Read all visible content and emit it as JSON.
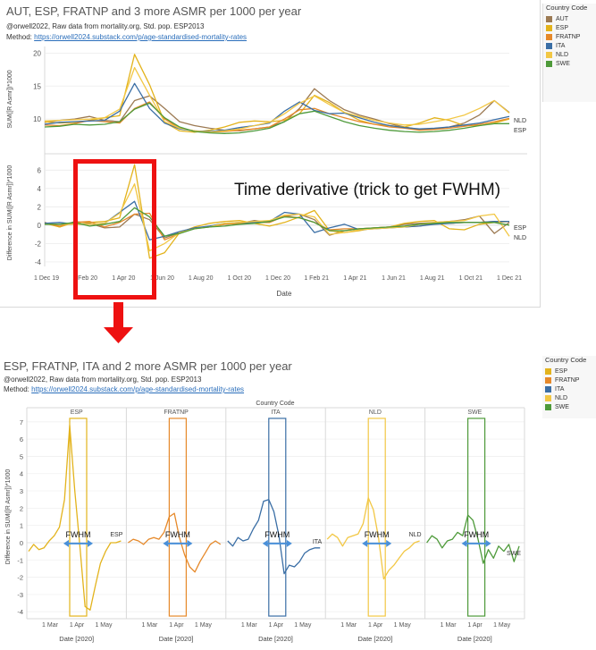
{
  "top": {
    "title": "AUT, ESP, FRATNP and 3 more ASMR per 1000 per year",
    "credit": "@orwell2022,  Raw data from mortality.org, Std. pop. ESP2013",
    "method_label": "Method:",
    "method_link": "https://orwell2024.substack.com/p/age-standardised-mortality-rates",
    "annotation": "Time derivative (trick to get FWHM)",
    "date_axis_label": "Date",
    "end_labels": [
      "NLD",
      "ESP",
      "ESP",
      "NLD"
    ],
    "legend": {
      "title": "Country Code",
      "items": [
        {
          "label": "AUT",
          "color": "#9c7a53"
        },
        {
          "label": "ESP",
          "color": "#e3b31c"
        },
        {
          "label": "FRATNP",
          "color": "#e6892a"
        },
        {
          "label": "ITA",
          "color": "#3a6ea5"
        },
        {
          "label": "NLD",
          "color": "#f2c744"
        },
        {
          "label": "SWE",
          "color": "#4e9a3a"
        }
      ]
    }
  },
  "bottom": {
    "title": "ESP, FRATNP, ITA and 2 more ASMR per 1000 per year",
    "credit": "@orwell2022,  Raw data from mortality.org, Std. pop. ESP2013",
    "method_label": "Method:",
    "method_link": "https://orwell2024.substack.com/p/age-standardised-mortality-rates",
    "facet_header": "Country Code",
    "fwhm_label": "FWHM",
    "date_axis_label": "Date [2020]",
    "legend": {
      "title": "Country Code",
      "items": [
        {
          "label": "ESP",
          "color": "#e3b31c"
        },
        {
          "label": "FRATNP",
          "color": "#e6892a"
        },
        {
          "label": "ITA",
          "color": "#3a6ea5"
        },
        {
          "label": "NLD",
          "color": "#f2c744"
        },
        {
          "label": "SWE",
          "color": "#4e9a3a"
        }
      ]
    }
  },
  "chart_data": [
    {
      "type": "line",
      "ylabel": "SUM([R Asmr])*1000",
      "ylim": [
        5,
        21
      ],
      "yticks": [
        10,
        15,
        20
      ],
      "xticks": [
        "1 Dec 19",
        "1 Feb 20",
        "1 Apr 20",
        "1 Jun 20",
        "1 Aug 20",
        "1 Oct 20",
        "1 Dec 20",
        "1 Feb 21",
        "1 Apr 21",
        "1 Jun 21",
        "1 Aug 21",
        "1 Oct 21",
        "1 Dec 21"
      ],
      "series": [
        {
          "name": "AUT",
          "color": "#9c7a53",
          "values": [
            9.5,
            9.8,
            10.0,
            10.4,
            9.8,
            9.6,
            12.8,
            13.5,
            11.6,
            9.6,
            9.0,
            8.6,
            8.3,
            8.2,
            8.5,
            8.8,
            9.6,
            11.6,
            14.6,
            12.8,
            11.4,
            10.6,
            10.0,
            9.3,
            8.8,
            8.4,
            8.5,
            8.8,
            9.4,
            10.6,
            12.8,
            11.0
          ]
        },
        {
          "name": "ESP",
          "color": "#e3b31c",
          "values": [
            9.6,
            9.4,
            9.5,
            9.8,
            10.2,
            10.5,
            19.8,
            15.2,
            9.5,
            8.2,
            8.0,
            8.3,
            8.8,
            9.5,
            9.7,
            9.6,
            9.8,
            10.8,
            13.6,
            12.5,
            11.0,
            9.8,
            9.2,
            9.0,
            8.8,
            9.4,
            10.2,
            9.8,
            9.0,
            9.0,
            9.4,
            10.0
          ]
        },
        {
          "name": "FRATNP",
          "color": "#e6892a",
          "values": [
            9.1,
            9.0,
            9.3,
            9.8,
            9.6,
            9.4,
            11.6,
            12.6,
            10.0,
            8.6,
            8.2,
            8.0,
            8.1,
            8.3,
            8.5,
            8.8,
            10.0,
            11.4,
            11.6,
            10.8,
            10.2,
            9.6,
            9.2,
            8.8,
            8.6,
            8.3,
            8.4,
            8.6,
            8.9,
            9.2,
            9.6,
            10.1
          ]
        },
        {
          "name": "ITA",
          "color": "#3a6ea5",
          "values": [
            9.2,
            9.5,
            9.6,
            9.7,
            9.8,
            11.2,
            15.4,
            11.6,
            9.4,
            8.5,
            8.2,
            8.1,
            8.3,
            8.7,
            9.0,
            9.4,
            11.2,
            12.6,
            11.3,
            10.8,
            10.9,
            10.2,
            9.5,
            9.0,
            8.7,
            8.5,
            8.6,
            8.8,
            9.1,
            9.4,
            9.9,
            10.4
          ]
        },
        {
          "name": "NLD",
          "color": "#f2c744",
          "values": [
            9.7,
            9.8,
            9.9,
            10.0,
            10.2,
            11.5,
            17.8,
            13.6,
            9.6,
            8.6,
            8.2,
            8.0,
            8.2,
            8.5,
            9.0,
            9.5,
            10.8,
            12.4,
            13.5,
            12.2,
            11.0,
            10.4,
            9.8,
            9.4,
            9.1,
            9.2,
            9.6,
            10.0,
            10.6,
            11.6,
            12.8,
            10.9
          ]
        },
        {
          "name": "SWE",
          "color": "#4e9a3a",
          "values": [
            8.8,
            8.9,
            9.2,
            9.1,
            9.2,
            9.6,
            11.5,
            12.4,
            10.2,
            8.8,
            8.1,
            7.9,
            7.8,
            7.9,
            8.2,
            8.6,
            9.6,
            10.8,
            11.2,
            10.4,
            9.6,
            9.0,
            8.6,
            8.3,
            8.1,
            8.0,
            8.1,
            8.3,
            8.6,
            9.0,
            9.3,
            9.3
          ]
        }
      ]
    },
    {
      "type": "line",
      "ylabel": "Difference in SUM([R Asmr])*1000",
      "ylim": [
        -4.5,
        7.2
      ],
      "yticks": [
        -4,
        -2,
        0,
        2,
        4,
        6
      ],
      "xticks": [
        "1 Dec 19",
        "1 Feb 20",
        "1 Apr 20",
        "1 Jun 20",
        "1 Aug 20",
        "1 Oct 20",
        "1 Dec 20",
        "1 Feb 21",
        "1 Apr 21",
        "1 Jun 21",
        "1 Aug 21",
        "1 Oct 21",
        "1 Dec 21"
      ],
      "series": [
        {
          "name": "AUT",
          "color": "#9c7a53",
          "values": [
            0.3,
            -0.2,
            0.4,
            0.2,
            -0.3,
            -0.2,
            1.2,
            0.6,
            -1.4,
            -0.8,
            -0.3,
            -0.2,
            0.1,
            0.2,
            0.5,
            0.3,
            1.0,
            1.2,
            0.6,
            -1.1,
            -0.6,
            -0.4,
            -0.3,
            -0.2,
            0.1,
            0.2,
            0.3,
            0.4,
            0.6,
            1.0,
            -0.9,
            0.3
          ]
        },
        {
          "name": "ESP",
          "color": "#e3b31c",
          "values": [
            0.2,
            -0.2,
            0.3,
            0.3,
            0.4,
            0.8,
            6.6,
            -3.6,
            -3.0,
            -0.8,
            -0.2,
            0.2,
            0.4,
            0.5,
            0.2,
            -0.1,
            0.3,
            0.9,
            1.6,
            -0.6,
            -0.8,
            -0.6,
            -0.3,
            -0.2,
            0.2,
            0.4,
            0.5,
            -0.4,
            -0.5,
            0.1,
            0.3,
            0.4
          ]
        },
        {
          "name": "FRATNP",
          "color": "#e6892a",
          "values": [
            0.2,
            -0.1,
            0.3,
            0.4,
            -0.2,
            0.3,
            1.2,
            1.3,
            -1.6,
            -0.9,
            -0.3,
            -0.2,
            0.1,
            0.2,
            0.3,
            0.3,
            1.0,
            0.8,
            0.3,
            -0.5,
            -0.4,
            -0.4,
            -0.3,
            -0.2,
            -0.2,
            -0.1,
            0.2,
            0.2,
            0.3,
            0.3,
            0.4,
            0.4
          ]
        },
        {
          "name": "ITA",
          "color": "#3a6ea5",
          "values": [
            0.2,
            0.3,
            0.1,
            0.1,
            0.2,
            1.4,
            2.6,
            -1.6,
            -1.2,
            -0.7,
            -0.3,
            -0.1,
            0.2,
            0.3,
            0.3,
            0.4,
            1.4,
            1.2,
            -0.8,
            -0.3,
            0.1,
            -0.5,
            -0.4,
            -0.3,
            -0.2,
            -0.1,
            0.1,
            0.2,
            0.3,
            0.3,
            0.4,
            0.4
          ]
        },
        {
          "name": "NLD",
          "color": "#f2c744",
          "values": [
            0.1,
            0.1,
            0.1,
            0.1,
            0.2,
            1.3,
            4.5,
            -2.8,
            -2.0,
            -0.8,
            -0.4,
            -0.2,
            0.2,
            0.3,
            0.4,
            0.5,
            1.1,
            1.2,
            0.9,
            -1.0,
            -0.8,
            -0.5,
            -0.4,
            -0.3,
            -0.2,
            0.1,
            0.3,
            0.4,
            0.5,
            1.0,
            1.2,
            -1.2
          ]
        },
        {
          "name": "SWE",
          "color": "#4e9a3a",
          "values": [
            0.1,
            0.1,
            0.3,
            -0.1,
            0.1,
            0.4,
            1.9,
            0.9,
            -1.2,
            -0.9,
            -0.4,
            -0.2,
            -0.1,
            0.1,
            0.2,
            0.4,
            0.9,
            0.8,
            0.3,
            -0.6,
            -0.6,
            -0.4,
            -0.3,
            -0.2,
            -0.1,
            0.1,
            0.2,
            0.3,
            0.3,
            0.3,
            0.3,
            0.0
          ]
        }
      ]
    },
    {
      "type": "line",
      "ylabel": "Difference in SUM([R Asmr])*1000",
      "ylim": [
        -4.3,
        7.3
      ],
      "yticks": [
        -4,
        -3,
        -2,
        -1,
        0,
        1,
        2,
        3,
        4,
        5,
        6,
        7
      ],
      "xticks": [
        "1 Mar",
        "1 Apr",
        "1 May"
      ],
      "facets": [
        {
          "name": "ESP",
          "color": "#e3b31c",
          "end_label": "ESP",
          "values": [
            -0.5,
            -0.1,
            -0.4,
            -0.3,
            0.1,
            0.4,
            0.9,
            2.5,
            6.8,
            3.0,
            -0.2,
            -3.7,
            -3.9,
            -2.5,
            -1.2,
            -0.5,
            0.0,
            0.0,
            0.1
          ]
        },
        {
          "name": "FRATNP",
          "color": "#e6892a",
          "values": [
            0.0,
            0.2,
            0.1,
            -0.1,
            0.2,
            0.3,
            0.2,
            0.6,
            1.5,
            1.7,
            0.3,
            -0.7,
            -1.4,
            -1.7,
            -1.1,
            -0.6,
            -0.1,
            0.1,
            -0.1
          ]
        },
        {
          "name": "ITA",
          "color": "#3a6ea5",
          "end_label": "ITA",
          "values": [
            0.1,
            -0.2,
            0.3,
            0.1,
            0.2,
            0.8,
            1.3,
            2.4,
            2.5,
            1.8,
            0.4,
            -1.8,
            -1.3,
            -1.4,
            -1.1,
            -0.6,
            -0.4,
            -0.3,
            -0.3
          ]
        },
        {
          "name": "NLD",
          "color": "#f2c744",
          "end_label": "NLD",
          "values": [
            0.2,
            0.5,
            0.3,
            -0.2,
            0.3,
            0.4,
            0.5,
            1.1,
            2.6,
            1.9,
            0.3,
            -2.1,
            -1.6,
            -1.3,
            -0.9,
            -0.5,
            -0.3,
            0.0,
            0.1
          ]
        },
        {
          "name": "SWE",
          "color": "#4e9a3a",
          "end_label": "SWE",
          "values": [
            0.0,
            0.4,
            0.2,
            -0.3,
            0.1,
            0.2,
            0.6,
            0.4,
            1.6,
            1.3,
            0.2,
            -1.2,
            -0.4,
            -0.9,
            -0.2,
            -0.5,
            -0.1,
            -1.1,
            -0.2
          ]
        }
      ]
    }
  ]
}
